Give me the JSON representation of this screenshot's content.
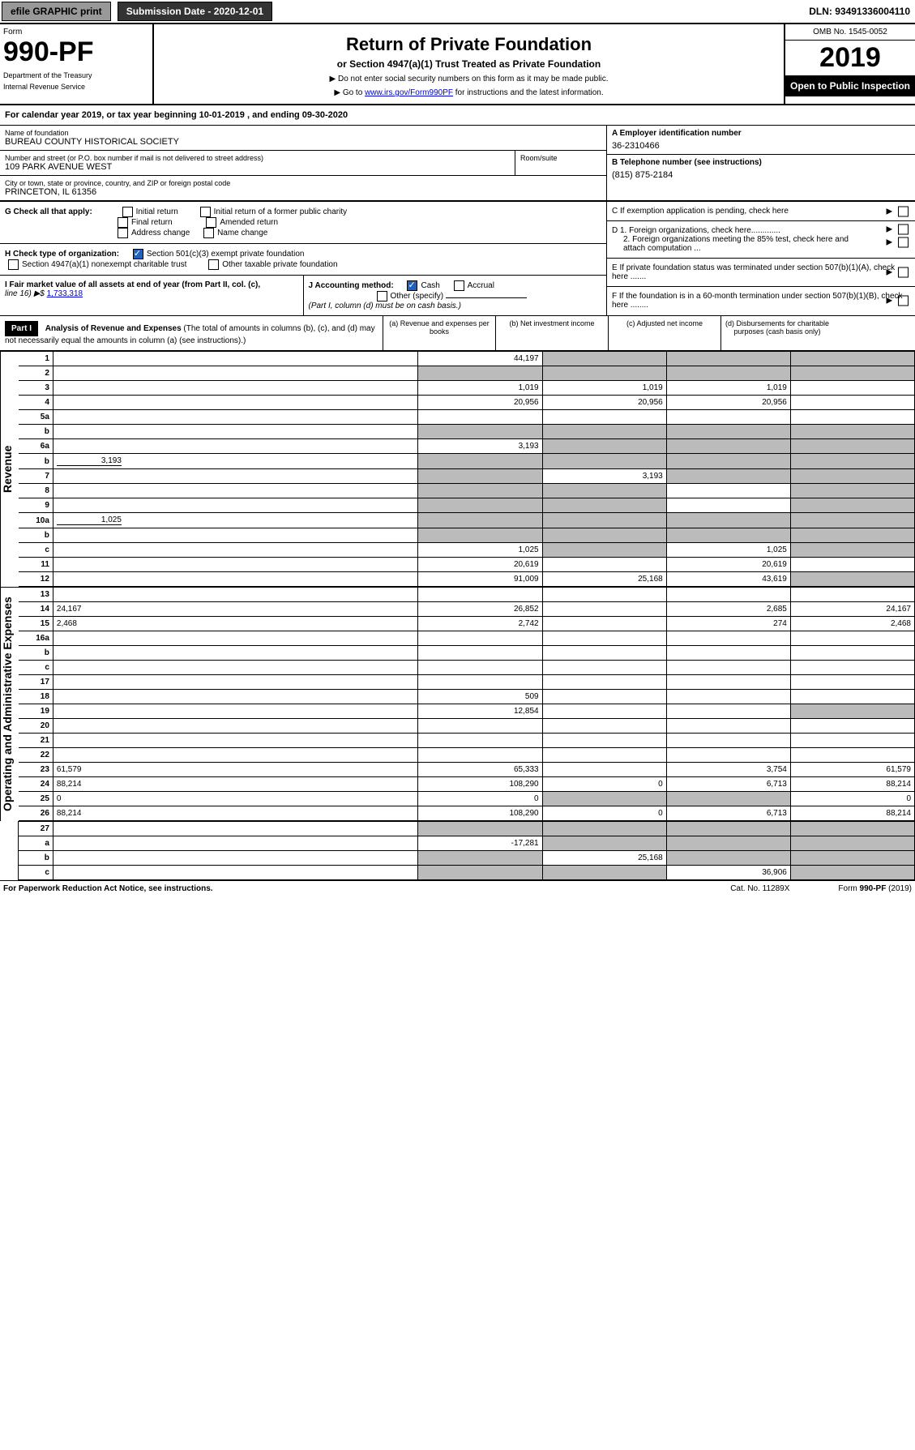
{
  "header_top": {
    "efile": "efile GRAPHIC print",
    "submission": "Submission Date - 2020-12-01",
    "dln": "DLN: 93491336004110"
  },
  "form_header": {
    "form_label": "Form",
    "form_num": "990-PF",
    "dept1": "Department of the Treasury",
    "dept2": "Internal Revenue Service",
    "title": "Return of Private Foundation",
    "subtitle": "or Section 4947(a)(1) Trust Treated as Private Foundation",
    "note1": "▶ Do not enter social security numbers on this form as it may be made public.",
    "note2_pre": "▶ Go to ",
    "note2_link": "www.irs.gov/Form990PF",
    "note2_post": " for instructions and the latest information.",
    "omb": "OMB No. 1545-0052",
    "year": "2019",
    "open": "Open to Public Inspection"
  },
  "calyear": "For calendar year 2019, or tax year beginning 10-01-2019                          , and ending 09-30-2020",
  "info": {
    "name_label": "Name of foundation",
    "name": "BUREAU COUNTY HISTORICAL SOCIETY",
    "street_label": "Number and street (or P.O. box number if mail is not delivered to street address)",
    "street": "109 PARK AVENUE WEST",
    "room_label": "Room/suite",
    "city_label": "City or town, state or province, country, and ZIP or foreign postal code",
    "city": "PRINCETON, IL  61356",
    "a_label": "A Employer identification number",
    "a_val": "36-2310466",
    "b_label": "B Telephone number (see instructions)",
    "b_val": "(815) 875-2184",
    "c_label": "C  If exemption application is pending, check here",
    "d1": "D 1. Foreign organizations, check here.............",
    "d2": "2. Foreign organizations meeting the 85% test, check here and attach computation ...",
    "e": "E  If private foundation status was terminated under section 507(b)(1)(A), check here .......",
    "f": "F  If the foundation is in a 60-month termination under section 507(b)(1)(B), check here ........"
  },
  "checks": {
    "g_label": "G Check all that apply:",
    "g_opts": [
      "Initial return",
      "Initial return of a former public charity",
      "Final return",
      "Amended return",
      "Address change",
      "Name change"
    ],
    "h_label": "H Check type of organization:",
    "h_opt1": "Section 501(c)(3) exempt private foundation",
    "h_opt2": "Section 4947(a)(1) nonexempt charitable trust",
    "h_opt3": "Other taxable private foundation",
    "i_label": "I Fair market value of all assets at end of year (from Part II, col. (c),",
    "i_line": "line 16) ▶$ ",
    "i_val": "1,733,318",
    "j_label": "J Accounting method:",
    "j_cash": "Cash",
    "j_accrual": "Accrual",
    "j_other": "Other (specify)",
    "j_note": "(Part I, column (d) must be on cash basis.)"
  },
  "part1": {
    "label": "Part I",
    "title": "Analysis of Revenue and Expenses",
    "title_note": "(The total of amounts in columns (b), (c), and (d) may not necessarily equal the amounts in column (a) (see instructions).)",
    "col_a": "(a) Revenue and expenses per books",
    "col_b": "(b) Net investment income",
    "col_c": "(c) Adjusted net income",
    "col_d": "(d) Disbursements for charitable purposes (cash basis only)"
  },
  "vlabels": {
    "rev": "Revenue",
    "exp": "Operating and Administrative Expenses"
  },
  "rows": [
    {
      "n": "1",
      "d": "",
      "a": "44,197",
      "b": "",
      "c": "",
      "shade_b": true,
      "shade_c": true,
      "shade_d": true
    },
    {
      "n": "2",
      "d": "",
      "a": "",
      "b": "",
      "c": "",
      "shade_all": true
    },
    {
      "n": "3",
      "d": "",
      "a": "1,019",
      "b": "1,019",
      "c": "1,019"
    },
    {
      "n": "4",
      "d": "",
      "a": "20,956",
      "b": "20,956",
      "c": "20,956"
    },
    {
      "n": "5a",
      "d": "",
      "a": "",
      "b": "",
      "c": ""
    },
    {
      "n": "b",
      "d": "",
      "a": "",
      "b": "",
      "c": "",
      "shade_all": true
    },
    {
      "n": "6a",
      "d": "",
      "a": "3,193",
      "b": "",
      "c": "",
      "shade_b": true,
      "shade_c": true,
      "shade_d": true
    },
    {
      "n": "b",
      "d": "",
      "dval": "3,193",
      "a": "",
      "b": "",
      "c": "",
      "shade_all": true
    },
    {
      "n": "7",
      "d": "",
      "a": "",
      "b": "3,193",
      "c": "",
      "shade_a": true,
      "shade_c": true,
      "shade_d": true
    },
    {
      "n": "8",
      "d": "",
      "a": "",
      "b": "",
      "c": "",
      "shade_a": true,
      "shade_b": true,
      "shade_d": true
    },
    {
      "n": "9",
      "d": "",
      "a": "",
      "b": "",
      "c": "",
      "shade_a": true,
      "shade_b": true,
      "shade_d": true
    },
    {
      "n": "10a",
      "d": "",
      "dval": "1,025",
      "a": "",
      "b": "",
      "c": "",
      "shade_all": true
    },
    {
      "n": "b",
      "d": "",
      "a": "",
      "b": "",
      "c": "",
      "shade_all": true
    },
    {
      "n": "c",
      "d": "",
      "a": "1,025",
      "b": "",
      "c": "1,025",
      "shade_b": true,
      "shade_d": true
    },
    {
      "n": "11",
      "d": "",
      "a": "20,619",
      "b": "",
      "c": "20,619"
    },
    {
      "n": "12",
      "d": "",
      "a": "91,009",
      "b": "25,168",
      "c": "43,619",
      "shade_d": true
    }
  ],
  "exp_rows": [
    {
      "n": "13",
      "d": "",
      "a": "",
      "b": "",
      "c": ""
    },
    {
      "n": "14",
      "d": "24,167",
      "a": "26,852",
      "b": "",
      "c": "2,685"
    },
    {
      "n": "15",
      "d": "2,468",
      "a": "2,742",
      "b": "",
      "c": "274"
    },
    {
      "n": "16a",
      "d": "",
      "a": "",
      "b": "",
      "c": ""
    },
    {
      "n": "b",
      "d": "",
      "a": "",
      "b": "",
      "c": ""
    },
    {
      "n": "c",
      "d": "",
      "a": "",
      "b": "",
      "c": ""
    },
    {
      "n": "17",
      "d": "",
      "a": "",
      "b": "",
      "c": ""
    },
    {
      "n": "18",
      "d": "",
      "a": "509",
      "b": "",
      "c": ""
    },
    {
      "n": "19",
      "d": "",
      "a": "12,854",
      "b": "",
      "c": "",
      "shade_d": true
    },
    {
      "n": "20",
      "d": "",
      "a": "",
      "b": "",
      "c": ""
    },
    {
      "n": "21",
      "d": "",
      "a": "",
      "b": "",
      "c": ""
    },
    {
      "n": "22",
      "d": "",
      "a": "",
      "b": "",
      "c": ""
    },
    {
      "n": "23",
      "d": "61,579",
      "a": "65,333",
      "b": "",
      "c": "3,754"
    },
    {
      "n": "24",
      "d": "88,214",
      "a": "108,290",
      "b": "0",
      "c": "6,713"
    },
    {
      "n": "25",
      "d": "0",
      "a": "0",
      "b": "",
      "c": "",
      "shade_b": true,
      "shade_c": true
    },
    {
      "n": "26",
      "d": "88,214",
      "a": "108,290",
      "b": "0",
      "c": "6,713"
    }
  ],
  "sub_rows": [
    {
      "n": "27",
      "d": "",
      "a": "",
      "b": "",
      "c": "",
      "shade_all": true
    },
    {
      "n": "a",
      "d": "",
      "a": "-17,281",
      "b": "",
      "c": "",
      "shade_b": true,
      "shade_c": true,
      "shade_d": true
    },
    {
      "n": "b",
      "d": "",
      "a": "",
      "b": "25,168",
      "c": "",
      "shade_a": true,
      "shade_c": true,
      "shade_d": true
    },
    {
      "n": "c",
      "d": "",
      "a": "",
      "b": "",
      "c": "36,906",
      "shade_a": true,
      "shade_b": true,
      "shade_d": true
    }
  ],
  "footer": {
    "left": "For Paperwork Reduction Act Notice, see instructions.",
    "cat": "Cat. No. 11289X",
    "form": "Form 990-PF (2019)"
  }
}
